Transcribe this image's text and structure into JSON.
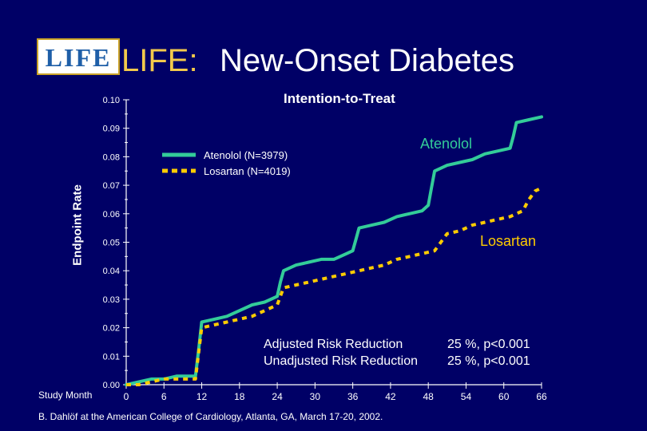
{
  "title": {
    "logo": "LIFE",
    "prefix": "LIFE:",
    "main": "New-Onset Diabetes"
  },
  "citation": "B. Dahlöf at the American College of Cardiology, Atlanta, GA, March 17-20, 2002.",
  "colors": {
    "background": "#000066",
    "atenolol": "#33cc99",
    "losartan": "#ffcc00",
    "title_prefix": "#f2c94c"
  },
  "chart_data": {
    "type": "line",
    "title": "Intention-to-Treat",
    "xlabel": "Study Month",
    "ylabel": "Endpoint Rate",
    "xlim": [
      0,
      66
    ],
    "ylim": [
      0,
      0.1
    ],
    "x_ticks": [
      0,
      6,
      12,
      18,
      24,
      30,
      36,
      42,
      48,
      54,
      60,
      66
    ],
    "y_ticks": [
      "0.00",
      "0.01",
      "0.02",
      "0.03",
      "0.04",
      "0.05",
      "0.06",
      "0.07",
      "0.08",
      "0.09",
      "0.10"
    ],
    "legend": [
      {
        "label": "Atenolol (N=3979)",
        "style": "solid",
        "color": "#33cc99"
      },
      {
        "label": "Losartan (N=4019)",
        "style": "dashed",
        "color": "#ffcc00"
      }
    ],
    "series": [
      {
        "name": "Atenolol",
        "label": "Atenolol",
        "color": "#33cc99",
        "dash": false,
        "x": [
          0,
          2,
          4,
          6,
          8,
          10,
          11,
          11.5,
          12,
          14,
          16,
          18,
          20,
          22,
          24,
          24.5,
          25,
          27,
          29,
          31,
          33,
          35,
          36,
          36.5,
          37,
          39,
          41,
          43,
          45,
          47,
          48,
          48.5,
          49,
          51,
          53,
          55,
          57,
          59,
          61,
          61.5,
          62,
          64,
          66
        ],
        "y": [
          0.0,
          0.001,
          0.002,
          0.002,
          0.003,
          0.003,
          0.003,
          0.012,
          0.022,
          0.023,
          0.024,
          0.026,
          0.028,
          0.029,
          0.031,
          0.036,
          0.04,
          0.042,
          0.043,
          0.044,
          0.044,
          0.046,
          0.047,
          0.051,
          0.055,
          0.056,
          0.057,
          0.059,
          0.06,
          0.061,
          0.063,
          0.069,
          0.075,
          0.077,
          0.078,
          0.079,
          0.081,
          0.082,
          0.083,
          0.087,
          0.092,
          0.093,
          0.094
        ]
      },
      {
        "name": "Losartan",
        "label": "Losartan",
        "color": "#ffcc00",
        "dash": true,
        "x": [
          0,
          2,
          4,
          6,
          8,
          10,
          11,
          11.5,
          12,
          14,
          16,
          18,
          20,
          22,
          24,
          24.5,
          25,
          27,
          29,
          31,
          33,
          35,
          37,
          39,
          41,
          43,
          45,
          47,
          49,
          50,
          51,
          53,
          55,
          57,
          59,
          61,
          63,
          64,
          65,
          66
        ],
        "y": [
          0.0,
          0.0,
          0.001,
          0.002,
          0.002,
          0.002,
          0.002,
          0.011,
          0.02,
          0.021,
          0.022,
          0.023,
          0.024,
          0.026,
          0.028,
          0.031,
          0.034,
          0.035,
          0.036,
          0.037,
          0.038,
          0.039,
          0.04,
          0.041,
          0.042,
          0.044,
          0.045,
          0.046,
          0.047,
          0.05,
          0.053,
          0.054,
          0.056,
          0.057,
          0.058,
          0.059,
          0.061,
          0.065,
          0.068,
          0.069
        ]
      }
    ],
    "annotations": {
      "adjusted_label": "Adjusted Risk Reduction",
      "adjusted_value": "25 %, p<0.001",
      "unadjusted_label": "Unadjusted Risk Reduction",
      "unadjusted_value": "25 %,  p<0.001"
    }
  }
}
